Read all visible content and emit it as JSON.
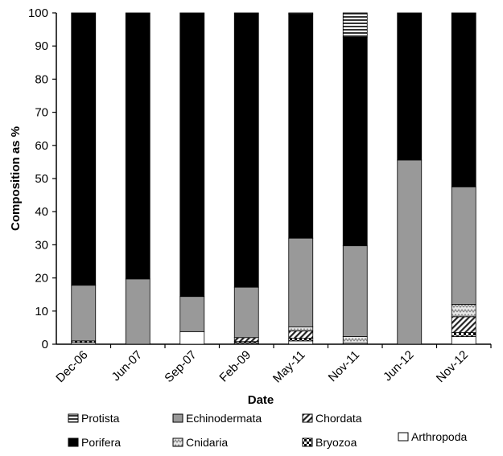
{
  "chart_data": {
    "type": "bar",
    "stacked": true,
    "title": "",
    "xlabel": "Date",
    "ylabel": "Composition as %",
    "ylim": [
      0,
      100
    ],
    "yticks": [
      0,
      10,
      20,
      30,
      40,
      50,
      60,
      70,
      80,
      90,
      100
    ],
    "grid": false,
    "legend_position": "bottom",
    "categories": [
      "Dec-06",
      "Jun-07",
      "Sep-07",
      "Feb-09",
      "May-11",
      "Nov-11",
      "Jun-12",
      "Nov-12"
    ],
    "series": [
      {
        "name": "Arthropoda",
        "color": "#ffffff",
        "pattern": "white",
        "values": [
          0.5,
          0,
          3.8,
          0.3,
          1.0,
          0.3,
          0,
          2.3
        ]
      },
      {
        "name": "Bryozoa",
        "color": "#000000",
        "pattern": "checker",
        "values": [
          0.5,
          0,
          0,
          0.5,
          0.8,
          0,
          0,
          1.2
        ]
      },
      {
        "name": "Chordata",
        "color": "#555555",
        "pattern": "diagonal",
        "values": [
          0,
          0,
          0,
          1.2,
          2.2,
          0,
          0,
          4.8
        ]
      },
      {
        "name": "Cnidaria",
        "color": "#bbbbbb",
        "pattern": "zigzag",
        "values": [
          0,
          0,
          0,
          0,
          1.2,
          2.0,
          0,
          3.7
        ]
      },
      {
        "name": "Echinodermata",
        "color": "#999999",
        "pattern": "solid",
        "values": [
          16.8,
          19.7,
          10.6,
          15.2,
          26.8,
          27.4,
          55.6,
          35.5
        ]
      },
      {
        "name": "Porifera",
        "color": "#000000",
        "pattern": "solid",
        "values": [
          82.2,
          80.3,
          85.6,
          82.8,
          67.6,
          63.0,
          44.4,
          52.5
        ]
      },
      {
        "name": "Protista",
        "color": "#ffffff",
        "pattern": "stripes",
        "values": [
          0,
          0,
          0,
          0,
          0.4,
          7.3,
          0,
          0
        ]
      }
    ],
    "legend_order": [
      "Protista",
      "Echinodermata",
      "Chordata",
      "Porifera",
      "Cnidaria",
      "Bryozoa",
      "Arthropoda"
    ]
  }
}
